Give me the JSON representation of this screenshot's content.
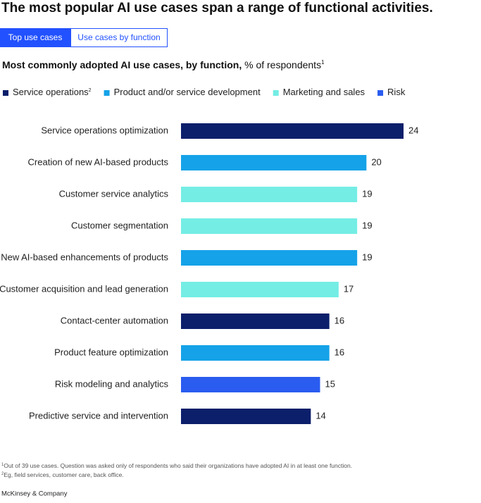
{
  "title": "The most popular AI use cases span a range of functional activities.",
  "tabs": [
    "Top use cases",
    "Use cases by function"
  ],
  "chart_data": {
    "type": "bar",
    "orientation": "horizontal",
    "subtitle": "Most commonly adopted AI use cases, by function,",
    "subtitle_unit": "% of respondents",
    "subtitle_note": "1",
    "categories": [
      "Service operations optimization",
      "Creation of new AI-based products",
      "Customer service analytics",
      "Customer segmentation",
      "New AI-based enhancements of products",
      "Customer acquisition and lead generation",
      "Contact-center automation",
      "Product feature optimization",
      "Risk modeling and analytics",
      "Predictive service and intervention"
    ],
    "series": [
      {
        "name": "Service operations",
        "note": "2",
        "color": "#0b1f6b",
        "values": [
          24,
          null,
          null,
          null,
          null,
          null,
          16,
          null,
          null,
          14
        ]
      },
      {
        "name": "Product and/or service development",
        "color": "#15a2e8",
        "values": [
          null,
          20,
          null,
          null,
          19,
          null,
          null,
          16,
          null,
          null
        ]
      },
      {
        "name": "Marketing and sales",
        "color": "#74ede4",
        "values": [
          null,
          null,
          19,
          19,
          null,
          17,
          null,
          null,
          null,
          null
        ]
      },
      {
        "name": "Risk",
        "color": "#2a5cf0",
        "values": [
          null,
          null,
          null,
          null,
          null,
          null,
          null,
          null,
          15,
          null
        ]
      }
    ]
  },
  "footnotes": [
    {
      "marker": "1",
      "text": "Out of 39 use cases. Question was asked only of respondents who said their organizations have adopted AI in at least one function."
    },
    {
      "marker": "2",
      "text": "Eg, field services, customer care, back office."
    }
  ],
  "source": "McKinsey & Company"
}
